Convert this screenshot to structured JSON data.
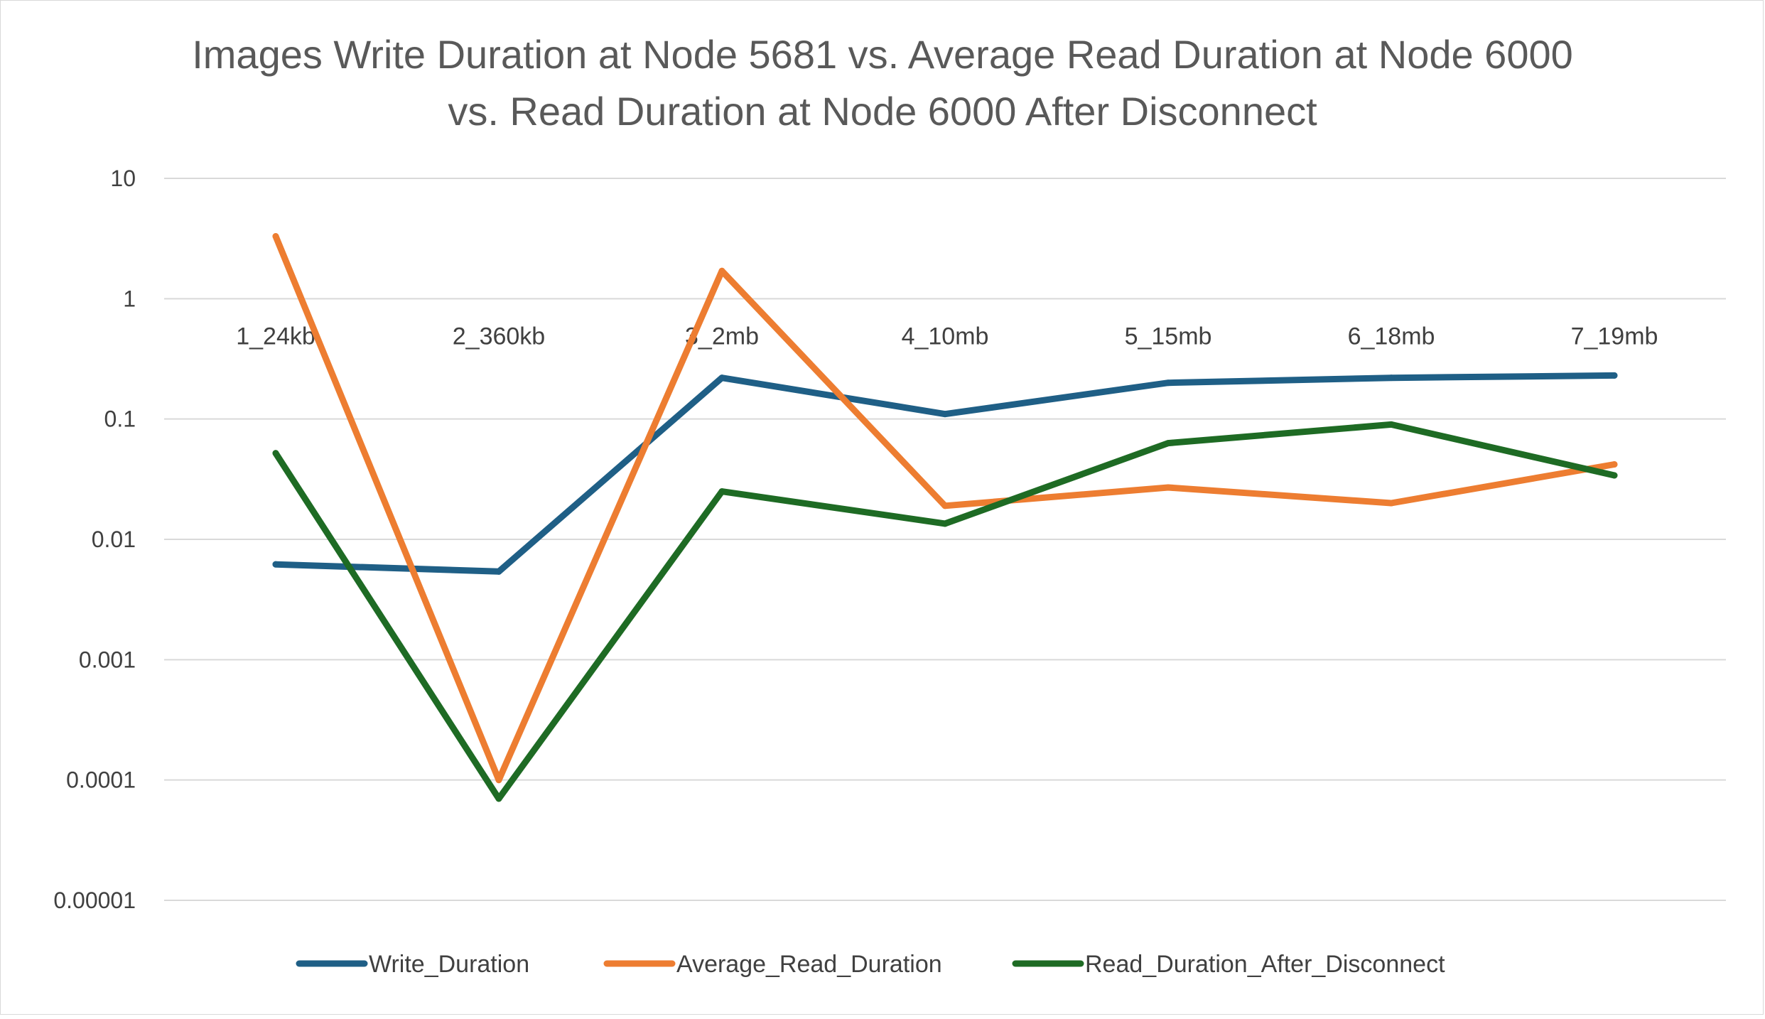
{
  "chart_data": {
    "type": "line",
    "title": [
      "Images Write Duration at Node 5681 vs. Average Read Duration at Node 6000",
      "vs. Read Duration at Node 6000 After Disconnect"
    ],
    "xlabel": "",
    "ylabel": "",
    "yscale": "log",
    "ylim": [
      1e-05,
      10
    ],
    "yticks": [
      10,
      1,
      0.1,
      0.01,
      0.001,
      0.0001,
      1e-05
    ],
    "ytick_labels": [
      "10",
      "1",
      "0.1",
      "0.01",
      "0.001",
      "0.0001",
      "0.00001"
    ],
    "categories": [
      "1_24kb",
      "2_360kb",
      "3_2mb",
      "4_10mb",
      "5_15mb",
      "6_18mb",
      "7_19mb"
    ],
    "grid": true,
    "legend_position": "bottom",
    "series": [
      {
        "name": "Write_Duration",
        "color": "#1f5f86",
        "values": [
          0.0062,
          0.0054,
          0.22,
          0.11,
          0.2,
          0.22,
          0.23
        ]
      },
      {
        "name": "Average_Read_Duration",
        "color": "#ed7d31",
        "values": [
          3.3,
          0.0001,
          1.7,
          0.019,
          0.027,
          0.02,
          0.042
        ]
      },
      {
        "name": "Read_Duration_After_Disconnect",
        "color": "#1e6b24",
        "values": [
          0.052,
          7e-05,
          0.025,
          0.0135,
          0.063,
          0.09,
          0.034
        ]
      }
    ]
  }
}
